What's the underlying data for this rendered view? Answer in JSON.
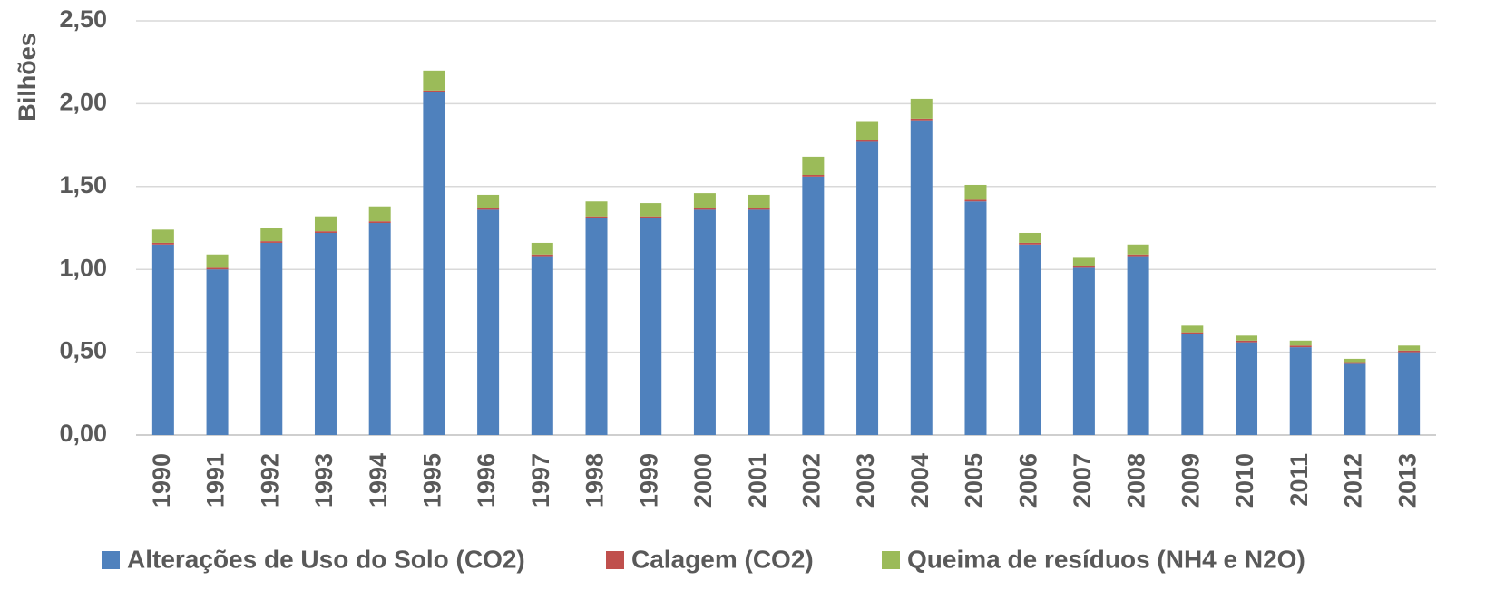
{
  "chart_data": {
    "type": "stacked_bar",
    "y_label": "Bilhões",
    "categories": [
      "1990",
      "1991",
      "1992",
      "1993",
      "1994",
      "1995",
      "1996",
      "1997",
      "1998",
      "1999",
      "2000",
      "2001",
      "2002",
      "2003",
      "2004",
      "2005",
      "2006",
      "2007",
      "2008",
      "2009",
      "2010",
      "2011",
      "2012",
      "2013"
    ],
    "series": [
      {
        "name": "Alterações de Uso do Solo (CO2)",
        "color": "#4f81bd",
        "values": [
          1.15,
          1.0,
          1.16,
          1.22,
          1.28,
          2.07,
          1.36,
          1.08,
          1.31,
          1.31,
          1.36,
          1.36,
          1.56,
          1.77,
          1.9,
          1.41,
          1.15,
          1.01,
          1.08,
          0.61,
          0.56,
          0.53,
          0.43,
          0.5
        ]
      },
      {
        "name": "Calagem (CO2)",
        "color": "#c0504d",
        "values": [
          0.01,
          0.01,
          0.01,
          0.01,
          0.01,
          0.01,
          0.01,
          0.01,
          0.01,
          0.01,
          0.01,
          0.01,
          0.01,
          0.01,
          0.01,
          0.01,
          0.01,
          0.01,
          0.01,
          0.01,
          0.01,
          0.01,
          0.01,
          0.01
        ]
      },
      {
        "name": "Queima de resíduos (NH4 e N2O)",
        "color": "#9bbb59",
        "values": [
          0.08,
          0.08,
          0.08,
          0.09,
          0.09,
          0.12,
          0.08,
          0.07,
          0.09,
          0.08,
          0.09,
          0.08,
          0.11,
          0.11,
          0.12,
          0.09,
          0.06,
          0.05,
          0.06,
          0.04,
          0.03,
          0.03,
          0.02,
          0.03
        ]
      }
    ],
    "ylim": [
      0,
      2.5
    ],
    "yticks": [
      {
        "value": 0,
        "label": "0,00"
      },
      {
        "value": 0.5,
        "label": "0,50"
      },
      {
        "value": 1,
        "label": "1,00"
      },
      {
        "value": 1.5,
        "label": "1,50"
      },
      {
        "value": 2,
        "label": "2,00"
      },
      {
        "value": 2.5,
        "label": "2,50"
      }
    ],
    "grid": true,
    "legend": "bottom"
  }
}
